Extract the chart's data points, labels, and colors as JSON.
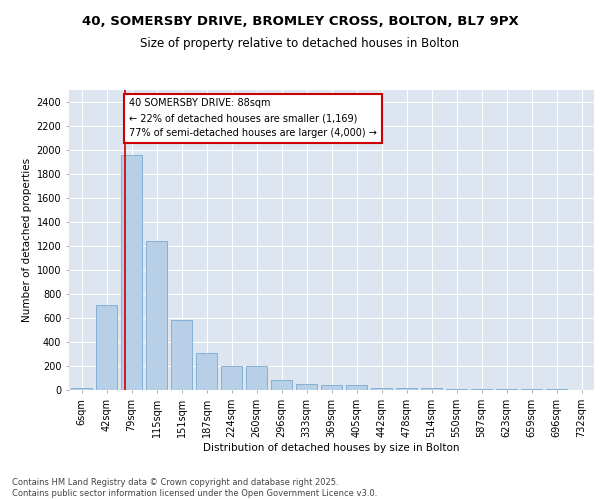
{
  "title_line1": "40, SOMERSBY DRIVE, BROMLEY CROSS, BOLTON, BL7 9PX",
  "title_line2": "Size of property relative to detached houses in Bolton",
  "xlabel": "Distribution of detached houses by size in Bolton",
  "ylabel": "Number of detached properties",
  "bar_color": "#b8cfe8",
  "bar_edge_color": "#7aaad0",
  "bg_color": "#dde5f0",
  "grid_color": "#ffffff",
  "categories": [
    "6sqm",
    "42sqm",
    "79sqm",
    "115sqm",
    "151sqm",
    "187sqm",
    "224sqm",
    "260sqm",
    "296sqm",
    "333sqm",
    "369sqm",
    "405sqm",
    "442sqm",
    "478sqm",
    "514sqm",
    "550sqm",
    "587sqm",
    "623sqm",
    "659sqm",
    "696sqm",
    "732sqm"
  ],
  "values": [
    15,
    710,
    1960,
    1240,
    580,
    305,
    200,
    200,
    80,
    50,
    38,
    38,
    20,
    20,
    15,
    5,
    5,
    5,
    5,
    5,
    0
  ],
  "ylim": [
    0,
    2500
  ],
  "yticks": [
    0,
    200,
    400,
    600,
    800,
    1000,
    1200,
    1400,
    1600,
    1800,
    2000,
    2200,
    2400
  ],
  "red_line_color": "#cc0000",
  "annotation_line1": "40 SOMERSBY DRIVE: 88sqm",
  "annotation_line2": "← 22% of detached houses are smaller (1,169)",
  "annotation_line3": "77% of semi-detached houses are larger (4,000) →",
  "annotation_box_color": "#ffffff",
  "annotation_edge_color": "#cc0000",
  "footnote": "Contains HM Land Registry data © Crown copyright and database right 2025.\nContains public sector information licensed under the Open Government Licence v3.0.",
  "title_fontsize": 9.5,
  "subtitle_fontsize": 8.5,
  "axis_label_fontsize": 7.5,
  "tick_fontsize": 7,
  "annotation_fontsize": 7,
  "footnote_fontsize": 6
}
